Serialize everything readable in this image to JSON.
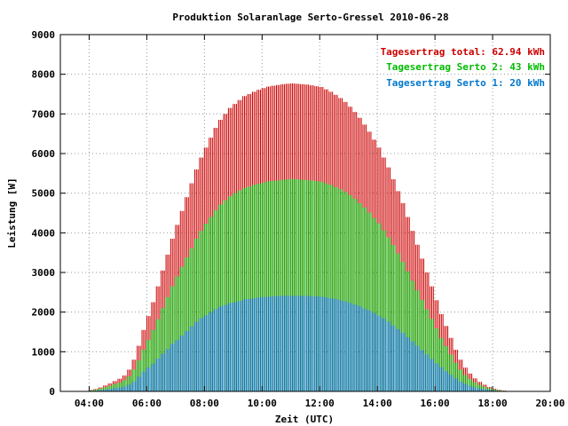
{
  "chart_data": {
    "type": "bar",
    "title": "Produktion Solaranlage Serto-Gressel 2010-06-28",
    "xlabel": "Zeit (UTC)",
    "ylabel": "Leistung [W]",
    "xlim": [
      "03:00",
      "20:00"
    ],
    "ylim": [
      0,
      9000
    ],
    "x_ticks": [
      "04:00",
      "06:00",
      "08:00",
      "10:00",
      "12:00",
      "14:00",
      "16:00",
      "18:00",
      "20:00"
    ],
    "y_ticks": [
      "0",
      "1000",
      "2000",
      "3000",
      "4000",
      "5000",
      "6000",
      "7000",
      "8000",
      "9000"
    ],
    "grid": true,
    "legend_position": "top-right",
    "legend": [
      "Tagesertrag total: 62.94 kWh",
      "Tagesertrag Serto 2: 43 kWh",
      "Tagesertrag Serto 1: 20 kWh"
    ],
    "x": [
      "03:50",
      "04:00",
      "04:10",
      "04:20",
      "04:30",
      "04:40",
      "04:50",
      "05:00",
      "05:10",
      "05:20",
      "05:30",
      "05:40",
      "05:50",
      "06:00",
      "06:10",
      "06:20",
      "06:30",
      "06:40",
      "06:50",
      "07:00",
      "07:10",
      "07:20",
      "07:30",
      "07:40",
      "07:50",
      "08:00",
      "08:10",
      "08:20",
      "08:30",
      "08:40",
      "08:50",
      "09:00",
      "09:10",
      "09:20",
      "09:30",
      "09:40",
      "09:50",
      "10:00",
      "10:10",
      "10:20",
      "10:30",
      "10:40",
      "10:50",
      "11:00",
      "11:10",
      "11:20",
      "11:30",
      "11:40",
      "11:50",
      "12:00",
      "12:10",
      "12:20",
      "12:30",
      "12:40",
      "12:50",
      "13:00",
      "13:10",
      "13:20",
      "13:30",
      "13:40",
      "13:50",
      "14:00",
      "14:10",
      "14:20",
      "14:30",
      "14:40",
      "14:50",
      "15:00",
      "15:10",
      "15:20",
      "15:30",
      "15:40",
      "15:50",
      "16:00",
      "16:10",
      "16:20",
      "16:30",
      "16:40",
      "16:50",
      "17:00",
      "17:10",
      "17:20",
      "17:30",
      "17:40",
      "17:50",
      "18:00",
      "18:10",
      "18:20",
      "18:30",
      "18:40",
      "18:50",
      "19:00",
      "19:10",
      "19:20"
    ],
    "series": [
      {
        "name": "Tagesertrag total: 62.94 kWh",
        "color": "#cc0000",
        "values": [
          10,
          40,
          60,
          100,
          150,
          200,
          260,
          320,
          400,
          550,
          800,
          1150,
          1550,
          1900,
          2250,
          2650,
          3050,
          3450,
          3850,
          4200,
          4550,
          4900,
          5250,
          5600,
          5900,
          6150,
          6400,
          6650,
          6850,
          7000,
          7150,
          7250,
          7350,
          7450,
          7500,
          7560,
          7610,
          7650,
          7690,
          7710,
          7730,
          7750,
          7760,
          7770,
          7760,
          7750,
          7740,
          7720,
          7700,
          7680,
          7620,
          7560,
          7480,
          7400,
          7300,
          7180,
          7050,
          6900,
          6730,
          6550,
          6350,
          6150,
          5900,
          5650,
          5350,
          5050,
          4750,
          4400,
          4050,
          3700,
          3350,
          3000,
          2650,
          2300,
          1950,
          1650,
          1350,
          1050,
          800,
          600,
          450,
          330,
          240,
          170,
          110,
          70,
          40,
          20,
          10,
          5,
          2,
          1,
          0,
          0
        ]
      },
      {
        "name": "Tagesertrag Serto 2: 43 kWh",
        "color": "#00bb00",
        "values": [
          7,
          28,
          42,
          70,
          105,
          140,
          180,
          220,
          280,
          380,
          550,
          780,
          1050,
          1300,
          1550,
          1820,
          2100,
          2380,
          2650,
          2900,
          3140,
          3380,
          3610,
          3850,
          4050,
          4230,
          4400,
          4570,
          4710,
          4820,
          4920,
          5000,
          5070,
          5130,
          5170,
          5210,
          5240,
          5270,
          5300,
          5310,
          5320,
          5340,
          5350,
          5360,
          5350,
          5340,
          5330,
          5320,
          5300,
          5290,
          5250,
          5210,
          5150,
          5100,
          5030,
          4950,
          4860,
          4750,
          4640,
          4510,
          4370,
          4240,
          4060,
          3890,
          3690,
          3480,
          3270,
          3030,
          2790,
          2550,
          2310,
          2070,
          1830,
          1590,
          1340,
          1140,
          930,
          720,
          550,
          410,
          310,
          230,
          165,
          115,
          75,
          48,
          28,
          14,
          7,
          3,
          1,
          0,
          0,
          0
        ]
      },
      {
        "name": "Tagesertrag Serto 1: 20 kWh",
        "color": "#0077cc",
        "values": [
          3,
          12,
          18,
          30,
          45,
          60,
          80,
          100,
          120,
          170,
          250,
          370,
          500,
          600,
          700,
          830,
          950,
          1070,
          1200,
          1300,
          1410,
          1520,
          1640,
          1750,
          1850,
          1920,
          2000,
          2080,
          2140,
          2180,
          2230,
          2250,
          2280,
          2320,
          2330,
          2350,
          2370,
          2380,
          2390,
          2400,
          2410,
          2410,
          2410,
          2410,
          2410,
          2410,
          2410,
          2400,
          2400,
          2390,
          2370,
          2350,
          2330,
          2300,
          2270,
          2230,
          2190,
          2150,
          2090,
          2040,
          1980,
          1910,
          1840,
          1760,
          1660,
          1570,
          1480,
          1370,
          1260,
          1150,
          1040,
          930,
          820,
          710,
          610,
          510,
          420,
          330,
          250,
          190,
          140,
          100,
          75,
          55,
          35,
          22,
          12,
          6,
          3,
          2,
          1,
          1,
          0,
          0
        ]
      }
    ]
  }
}
